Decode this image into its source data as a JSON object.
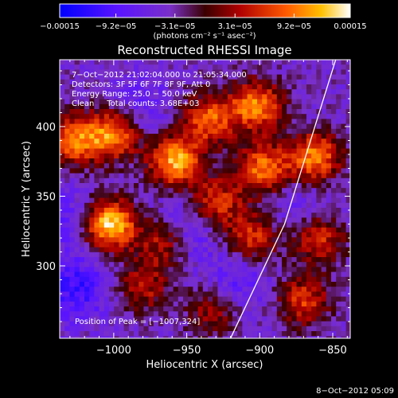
{
  "chart_data": {
    "type": "heatmap",
    "title": "Reconstructed RHESSI Image",
    "xlabel": "Heliocentric X (arcsec)",
    "ylabel": "Heliocentric Y (arcsec)",
    "xlim": [
      -1037,
      -838
    ],
    "ylim": [
      248,
      448
    ],
    "xticks": [
      -1000,
      -950,
      -900,
      -850
    ],
    "xtick_labels": [
      "−1000",
      "−950",
      "−900",
      "−850"
    ],
    "yticks": [
      300,
      350,
      400
    ],
    "ytick_labels": [
      "300",
      "350",
      "400"
    ],
    "colorbar": {
      "range": [
        -0.00015,
        0.00015
      ],
      "ticks": [
        -0.00015,
        -9.2e-05,
        -3.1e-05,
        3.1e-05,
        9.2e-05,
        0.00015
      ],
      "tick_labels": [
        "−0.00015",
        "−9.2e−05",
        "−3.1e−05",
        "3.1e−05",
        "9.2e−05",
        "0.00015"
      ],
      "unit": "(photons cm⁻² s⁻¹ asec⁻²)"
    },
    "info_lines": [
      "7−Oct−2012 21:02:04.000 to 21:05:34.000",
      "Detectors: 3F 5F 6F 7F 8F 9F, Att 0",
      "Energy Range: 25.0 − 50.0 keV",
      "Clean     Total counts: 3.68E+03"
    ],
    "peak_label": "Position of Peak = [−1007,324]",
    "limb_line": [
      [
        -920,
        248
      ],
      [
        -883,
        330
      ],
      [
        -848,
        448
      ]
    ],
    "hot_regions": [
      {
        "x": -1003,
        "y": 330,
        "intensity": 1.0
      },
      {
        "x": -1000,
        "y": 395,
        "intensity": 0.8
      },
      {
        "x": -958,
        "y": 375,
        "intensity": 0.85
      },
      {
        "x": -965,
        "y": 318,
        "intensity": 0.65
      },
      {
        "x": -935,
        "y": 405,
        "intensity": 0.65
      },
      {
        "x": -930,
        "y": 345,
        "intensity": 0.55
      },
      {
        "x": -902,
        "y": 415,
        "intensity": 0.75
      },
      {
        "x": -898,
        "y": 370,
        "intensity": 0.7
      },
      {
        "x": -905,
        "y": 320,
        "intensity": 0.55
      },
      {
        "x": -862,
        "y": 378,
        "intensity": 0.75
      },
      {
        "x": -860,
        "y": 320,
        "intensity": 0.55
      },
      {
        "x": -870,
        "y": 275,
        "intensity": 0.55
      },
      {
        "x": -1028,
        "y": 390,
        "intensity": 0.7
      },
      {
        "x": -980,
        "y": 285,
        "intensity": 0.45
      },
      {
        "x": -932,
        "y": 268,
        "intensity": 0.4
      }
    ],
    "cold_regions": [
      {
        "x": -955,
        "y": 325,
        "intensity": 0.8
      },
      {
        "x": -1025,
        "y": 285,
        "intensity": 0.7
      },
      {
        "x": -1030,
        "y": 335,
        "intensity": 0.45
      },
      {
        "x": -985,
        "y": 410,
        "intensity": 0.45
      },
      {
        "x": -915,
        "y": 290,
        "intensity": 0.5
      },
      {
        "x": -872,
        "y": 340,
        "intensity": 0.35
      }
    ]
  },
  "footer": {
    "timestamp": "8−Oct−2012 05:09"
  }
}
